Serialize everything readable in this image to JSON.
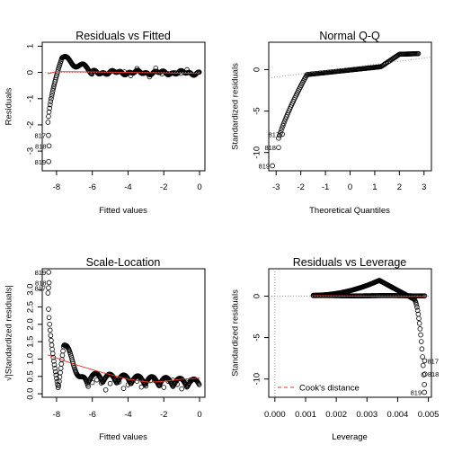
{
  "chart_data": [
    {
      "type": "scatter",
      "title": "Residuals vs Fitted",
      "xlabel": "Fitted values",
      "ylabel": "Residuals",
      "xlim": [
        -8.8,
        0.3
      ],
      "ylim": [
        -3.75,
        1.15
      ],
      "xticks": [
        -8,
        -6,
        -4,
        -2,
        0
      ],
      "yticks": [
        -3,
        -2,
        -1,
        0,
        1
      ],
      "labeled_points": [
        {
          "label": "817",
          "x": -8.45,
          "y": -2.4
        },
        {
          "label": "818",
          "x": -8.42,
          "y": -2.8
        },
        {
          "label": "819",
          "x": -8.44,
          "y": -3.4
        }
      ],
      "reference_line": {
        "y": 0
      },
      "smoother": [
        [
          -8.5,
          -0.05
        ],
        [
          -8.0,
          0.03
        ],
        [
          -6,
          0.02
        ],
        [
          -4,
          0.0
        ],
        [
          -2,
          -0.02
        ],
        [
          0,
          -0.04
        ]
      ]
    },
    {
      "type": "scatter",
      "title": "Normal Q-Q",
      "xlabel": "Theoretical Quantiles",
      "ylabel": "Standardized residuals",
      "xlim": [
        -3.3,
        3.3
      ],
      "ylim": [
        -12.2,
        3.3
      ],
      "xticks": [
        -3,
        -2,
        -1,
        0,
        1,
        2,
        3
      ],
      "yticks": [
        -10,
        -5,
        0
      ],
      "labeled_points": [
        {
          "label": "817",
          "x": -2.75,
          "y": -7.8
        },
        {
          "label": "818",
          "x": -2.9,
          "y": -9.4
        },
        {
          "label": "819",
          "x": -3.15,
          "y": -11.6
        }
      ],
      "reference_line": [
        [
          -3.3,
          -1.0
        ],
        [
          3.3,
          1.5
        ]
      ]
    },
    {
      "type": "scatter",
      "title": "Scale-Location",
      "xlabel": "Fitted values",
      "ylabel": "√|Standardized residuals|",
      "xlim": [
        -8.8,
        0.3
      ],
      "ylim": [
        -0.1,
        3.6
      ],
      "xticks": [
        -8,
        -6,
        -4,
        -2,
        0
      ],
      "yticks": [
        0.0,
        0.5,
        1.0,
        1.5,
        2.0,
        2.5,
        3.0
      ],
      "labeled_points": [
        {
          "label": "819",
          "x": -8.44,
          "y": 3.5
        },
        {
          "label": "818",
          "x": -8.42,
          "y": 3.2
        },
        {
          "label": "817",
          "x": -8.45,
          "y": 3.05
        }
      ],
      "smoother": [
        [
          -8.5,
          1.12
        ],
        [
          -7,
          0.85
        ],
        [
          -5.5,
          0.62
        ],
        [
          -4,
          0.42
        ],
        [
          -2.8,
          0.33
        ],
        [
          -2,
          0.36
        ],
        [
          -1,
          0.42
        ],
        [
          0,
          0.45
        ]
      ]
    },
    {
      "type": "scatter",
      "title": "Residuals vs Leverage",
      "xlabel": "Leverage",
      "ylabel": "Standardized residuals",
      "xlim": [
        -0.0002,
        0.0051
      ],
      "ylim": [
        -12.2,
        3.3
      ],
      "xticks": [
        0.0,
        0.001,
        0.002,
        0.003,
        0.004,
        0.005
      ],
      "xtick_labels": [
        "0.000",
        "0.001",
        "0.002",
        "0.003",
        "0.004",
        "0.005"
      ],
      "yticks": [
        -10,
        -5,
        0
      ],
      "labeled_points": [
        {
          "label": "817",
          "x": 0.00488,
          "y": -7.8
        },
        {
          "label": "818",
          "x": 0.00489,
          "y": -9.4
        },
        {
          "label": "819",
          "x": 0.00487,
          "y": -11.6
        }
      ],
      "legend": {
        "label": "Cook's distance",
        "position": "bottom-left"
      }
    }
  ]
}
